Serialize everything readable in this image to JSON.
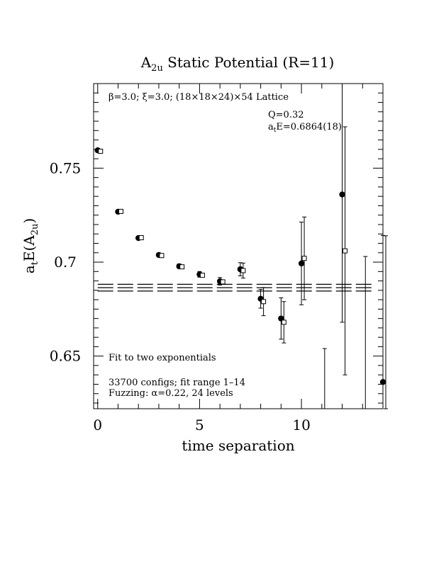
{
  "chart_data": {
    "type": "scatter",
    "title_base": "A",
    "title_sub": "2u",
    "title_rest": " Static Potential (R=11)",
    "xlabel": "time separation",
    "ylabel_base": "a",
    "ylabel_sub1": "t",
    "ylabel_mid": "E(A",
    "ylabel_sub2": "2u",
    "ylabel_end": ")",
    "xlim": [
      -0.2,
      14.0
    ],
    "ylim": [
      0.622,
      0.795
    ],
    "x_ticks": [
      0,
      5,
      10
    ],
    "x_tick_labels": [
      "0",
      "5",
      "10"
    ],
    "y_ticks": [
      0.65,
      0.7,
      0.75
    ],
    "y_tick_labels": [
      "0.65",
      "0.7",
      "0.75"
    ],
    "annotations": {
      "lattice": "β=3.0; ξ=3.0; (18×18×24)×54 Lattice",
      "q": "Q=0.32",
      "energy_base": "a",
      "energy_sub": "t",
      "energy_rest": "E=0.6864(18)",
      "fit": "Fit to two exponentials",
      "configs": "33700 configs; fit range 1–14",
      "fuzzing": "Fuzzing: α=0.22, 24 levels"
    },
    "fit": {
      "value": 0.6864,
      "error": 0.0018,
      "x_range": [
        0,
        13.5
      ]
    },
    "series": [
      {
        "marker": "filled-circle",
        "points": [
          {
            "x": 0,
            "y": 0.7595,
            "err": 0.0005
          },
          {
            "x": 1,
            "y": 0.7268,
            "err": 0.0006
          },
          {
            "x": 2,
            "y": 0.7128,
            "err": 0.0008
          },
          {
            "x": 3,
            "y": 0.7038,
            "err": 0.0009
          },
          {
            "x": 4,
            "y": 0.6978,
            "err": 0.0012
          },
          {
            "x": 5,
            "y": 0.6935,
            "err": 0.0015
          },
          {
            "x": 6,
            "y": 0.6898,
            "err": 0.002
          },
          {
            "x": 7,
            "y": 0.6962,
            "err": 0.0035
          },
          {
            "x": 8,
            "y": 0.6805,
            "err": 0.005
          },
          {
            "x": 9,
            "y": 0.67,
            "err": 0.011
          },
          {
            "x": 10,
            "y": 0.6993,
            "err": 0.022
          },
          {
            "x": 12,
            "y": 0.736,
            "err": 0.068
          },
          {
            "x": 14,
            "y": 0.6362,
            "err": 0.078
          }
        ]
      },
      {
        "marker": "open-square",
        "points": [
          {
            "x": 0,
            "y": 0.759
          },
          {
            "x": 1,
            "y": 0.727
          },
          {
            "x": 2,
            "y": 0.713
          },
          {
            "x": 3,
            "y": 0.7035
          },
          {
            "x": 4,
            "y": 0.6975
          },
          {
            "x": 5,
            "y": 0.693
          },
          {
            "x": 6,
            "y": 0.6895
          },
          {
            "x": 7,
            "y": 0.6955,
            "err": 0.004
          },
          {
            "x": 8,
            "y": 0.679,
            "err": 0.0075
          },
          {
            "x": 9,
            "y": 0.668,
            "err": 0.011
          },
          {
            "x": 10,
            "y": 0.702,
            "err": 0.022
          },
          {
            "x": 12,
            "y": 0.706,
            "err": 0.066
          },
          {
            "x": 11,
            "err_low": 0.622,
            "err_high": 0.654
          },
          {
            "x": 13,
            "err_low": 0.622,
            "err_high": 0.703
          },
          {
            "x": 14,
            "err_low": 0.622,
            "err_high": 0.714
          }
        ]
      }
    ]
  }
}
